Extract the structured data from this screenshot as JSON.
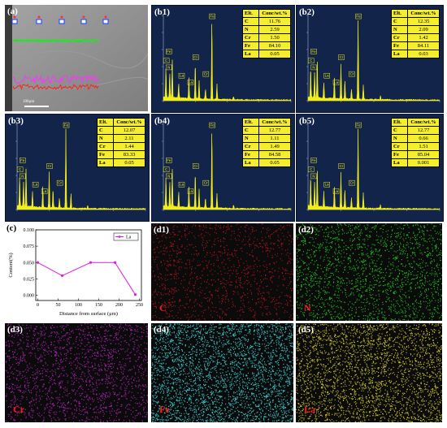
{
  "panel_a": {
    "label": "(a)",
    "scale_text": "100µm"
  },
  "eds_panels": [
    {
      "label": "(b1)",
      "header": [
        "Elt.",
        "Conc/wt.%"
      ],
      "rows": [
        [
          "C",
          "11.76"
        ],
        [
          "N",
          "2.59"
        ],
        [
          "Cr",
          "1.50"
        ],
        [
          "Fe",
          "84.10"
        ],
        [
          "La",
          "0.05"
        ]
      ]
    },
    {
      "label": "(b2)",
      "header": [
        "Elt.",
        "Conc/wt.%"
      ],
      "rows": [
        [
          "C",
          "12.35"
        ],
        [
          "N",
          "2.09"
        ],
        [
          "Cr",
          "1.42"
        ],
        [
          "Fe",
          "84.11"
        ],
        [
          "La",
          "0.03"
        ]
      ]
    },
    {
      "label": "(b3)",
      "header": [
        "Elt.",
        "Conc/wt.%"
      ],
      "rows": [
        [
          "C",
          "12.07"
        ],
        [
          "N",
          "2.11"
        ],
        [
          "Cr",
          "1.44"
        ],
        [
          "Fe",
          "83.33"
        ],
        [
          "La",
          "0.05"
        ]
      ]
    },
    {
      "label": "(b4)",
      "header": [
        "Elt.",
        "Conc/wt.%"
      ],
      "rows": [
        [
          "C",
          "12.77"
        ],
        [
          "N",
          "1.11"
        ],
        [
          "Cr",
          "1.49"
        ],
        [
          "Fe",
          "84.58"
        ],
        [
          "La",
          "0.05"
        ]
      ]
    },
    {
      "label": "(b5)",
      "header": [
        "Elt.",
        "Conc/wt.%"
      ],
      "rows": [
        [
          "C",
          "12.77"
        ],
        [
          "N",
          "0.66"
        ],
        [
          "Cr",
          "1.51"
        ],
        [
          "Fe",
          "85.04"
        ],
        [
          "La",
          "0.001"
        ]
      ]
    }
  ],
  "peak_labels": {
    "fe": "Fe",
    "cr": "Cr",
    "la": "La",
    "c": "C",
    "n": "N"
  },
  "chart_data": {
    "type": "line",
    "label": "(c)",
    "xlabel": "Distance from surface (μm)",
    "ylabel": "Content(%)",
    "xlim": [
      -5,
      255
    ],
    "ylim": [
      -0.008,
      0.1
    ],
    "xticks": [
      0,
      50,
      100,
      150,
      200,
      250
    ],
    "yticks": [
      0.0,
      0.025,
      0.05,
      0.075,
      0.1
    ],
    "ytick_labels": [
      "0.000",
      "0.025",
      "0.050",
      "0.075",
      "0.100"
    ],
    "legend_placement": "top-right",
    "series": [
      {
        "name": "La",
        "color": "#e020e0",
        "x": [
          0,
          60,
          130,
          190,
          240
        ],
        "y": [
          0.05,
          0.03,
          0.05,
          0.05,
          0.001
        ]
      }
    ]
  },
  "maps": [
    {
      "label": "(d1)",
      "element": "C",
      "color": "#c8141e"
    },
    {
      "label": "(d2)",
      "element": "N",
      "color": "#1fcf1f"
    },
    {
      "label": "(d3)",
      "element": "Cr",
      "color": "#c21fc8"
    },
    {
      "label": "(d4)",
      "element": "Fe",
      "color": "#3fd8dc"
    },
    {
      "label": "(d5)",
      "element": "La",
      "color": "#d8d02a"
    }
  ]
}
